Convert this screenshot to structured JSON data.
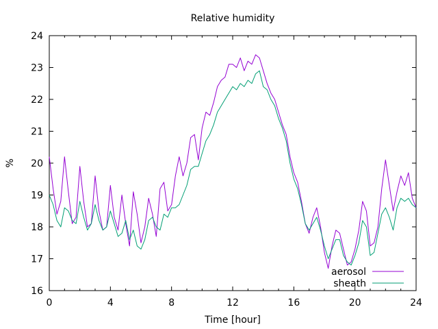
{
  "chart_data": {
    "type": "line",
    "title": "Relative humidity",
    "xlabel": "Time [hour]",
    "ylabel": "%",
    "xlim": [
      0,
      24
    ],
    "ylim": [
      16,
      24
    ],
    "xticks": [
      "0",
      "4",
      "8",
      "12",
      "16",
      "20",
      "24"
    ],
    "yticks": [
      "16",
      "17",
      "18",
      "19",
      "20",
      "21",
      "22",
      "23",
      "24"
    ],
    "grid": false,
    "legend_position": "bottom-right",
    "series": [
      {
        "name": "aerosol",
        "color": "#9400d3",
        "x": [
          0,
          0.25,
          0.5,
          0.75,
          1,
          1.25,
          1.5,
          1.75,
          2,
          2.25,
          2.5,
          2.75,
          3,
          3.25,
          3.5,
          3.75,
          4,
          4.25,
          4.5,
          4.75,
          5,
          5.25,
          5.5,
          5.75,
          6,
          6.25,
          6.5,
          6.75,
          7,
          7.25,
          7.5,
          7.75,
          8,
          8.25,
          8.5,
          8.75,
          9,
          9.25,
          9.5,
          9.75,
          10,
          10.25,
          10.5,
          10.75,
          11,
          11.25,
          11.5,
          11.75,
          12,
          12.25,
          12.5,
          12.75,
          13,
          13.25,
          13.5,
          13.75,
          14,
          14.25,
          14.5,
          14.75,
          15,
          15.25,
          15.5,
          15.75,
          16,
          16.25,
          16.5,
          16.75,
          17,
          17.25,
          17.5,
          17.75,
          18,
          18.25,
          18.5,
          18.75,
          19,
          19.25,
          19.5,
          19.75,
          20,
          20.25,
          20.5,
          20.75,
          21,
          21.25,
          21.5,
          21.75,
          22,
          22.25,
          22.5,
          22.75,
          23,
          23.25,
          23.5,
          23.75,
          24
        ],
        "values": [
          20.2,
          19.2,
          18.4,
          18.8,
          20.2,
          19.1,
          18.1,
          18.3,
          19.9,
          18.8,
          18.0,
          18.1,
          19.6,
          18.5,
          17.9,
          18.0,
          19.3,
          18.3,
          17.9,
          19.0,
          18.1,
          17.4,
          19.1,
          18.4,
          17.5,
          18.0,
          18.9,
          18.4,
          17.7,
          19.2,
          19.4,
          18.5,
          18.7,
          19.6,
          20.2,
          19.6,
          20.0,
          20.8,
          20.9,
          20.1,
          21.1,
          21.6,
          21.5,
          21.9,
          22.4,
          22.6,
          22.7,
          23.1,
          23.1,
          23.0,
          23.3,
          22.9,
          23.2,
          23.1,
          23.4,
          23.3,
          22.9,
          22.5,
          22.2,
          22.0,
          21.6,
          21.2,
          20.9,
          20.2,
          19.7,
          19.4,
          18.8,
          18.1,
          17.8,
          18.3,
          18.6,
          18.0,
          17.2,
          16.7,
          17.4,
          17.9,
          17.8,
          17.3,
          16.8,
          16.9,
          17.3,
          17.9,
          18.8,
          18.5,
          17.4,
          17.5,
          18.0,
          19.2,
          20.1,
          19.3,
          18.5,
          19.1,
          19.6,
          19.3,
          19.7,
          18.9,
          18.6
        ]
      },
      {
        "name": "sheath",
        "color": "#009e73",
        "x": [
          0,
          0.25,
          0.5,
          0.75,
          1,
          1.25,
          1.5,
          1.75,
          2,
          2.25,
          2.5,
          2.75,
          3,
          3.25,
          3.5,
          3.75,
          4,
          4.25,
          4.5,
          4.75,
          5,
          5.25,
          5.5,
          5.75,
          6,
          6.25,
          6.5,
          6.75,
          7,
          7.25,
          7.5,
          7.75,
          8,
          8.25,
          8.5,
          8.75,
          9,
          9.25,
          9.5,
          9.75,
          10,
          10.25,
          10.5,
          10.75,
          11,
          11.25,
          11.5,
          11.75,
          12,
          12.25,
          12.5,
          12.75,
          13,
          13.25,
          13.5,
          13.75,
          14,
          14.25,
          14.5,
          14.75,
          15,
          15.25,
          15.5,
          15.75,
          16,
          16.25,
          16.5,
          16.75,
          17,
          17.25,
          17.5,
          17.75,
          18,
          18.25,
          18.5,
          18.75,
          19,
          19.25,
          19.5,
          19.75,
          20,
          20.25,
          20.5,
          20.75,
          21,
          21.25,
          21.5,
          21.75,
          22,
          22.25,
          22.5,
          22.75,
          23,
          23.25,
          23.5,
          23.75,
          24
        ],
        "values": [
          19.0,
          18.7,
          18.2,
          18.0,
          18.6,
          18.5,
          18.2,
          18.1,
          18.8,
          18.3,
          17.9,
          18.1,
          18.7,
          18.2,
          17.9,
          18.0,
          18.5,
          18.1,
          17.7,
          17.8,
          18.2,
          17.6,
          17.9,
          17.4,
          17.3,
          17.6,
          18.2,
          18.3,
          18.0,
          17.9,
          18.4,
          18.3,
          18.6,
          18.6,
          18.7,
          19.0,
          19.3,
          19.8,
          19.9,
          19.9,
          20.3,
          20.7,
          20.9,
          21.2,
          21.6,
          21.8,
          22.0,
          22.2,
          22.4,
          22.3,
          22.5,
          22.4,
          22.6,
          22.5,
          22.8,
          22.9,
          22.4,
          22.3,
          22.0,
          21.8,
          21.4,
          21.1,
          20.7,
          20.0,
          19.5,
          19.2,
          18.7,
          18.1,
          17.9,
          18.1,
          18.3,
          17.9,
          17.4,
          17.0,
          17.3,
          17.6,
          17.6,
          17.1,
          16.9,
          16.8,
          17.1,
          17.5,
          18.2,
          18.0,
          17.1,
          17.2,
          17.8,
          18.4,
          18.6,
          18.3,
          17.9,
          18.6,
          18.9,
          18.8,
          18.9,
          18.7,
          18.6
        ]
      }
    ]
  }
}
